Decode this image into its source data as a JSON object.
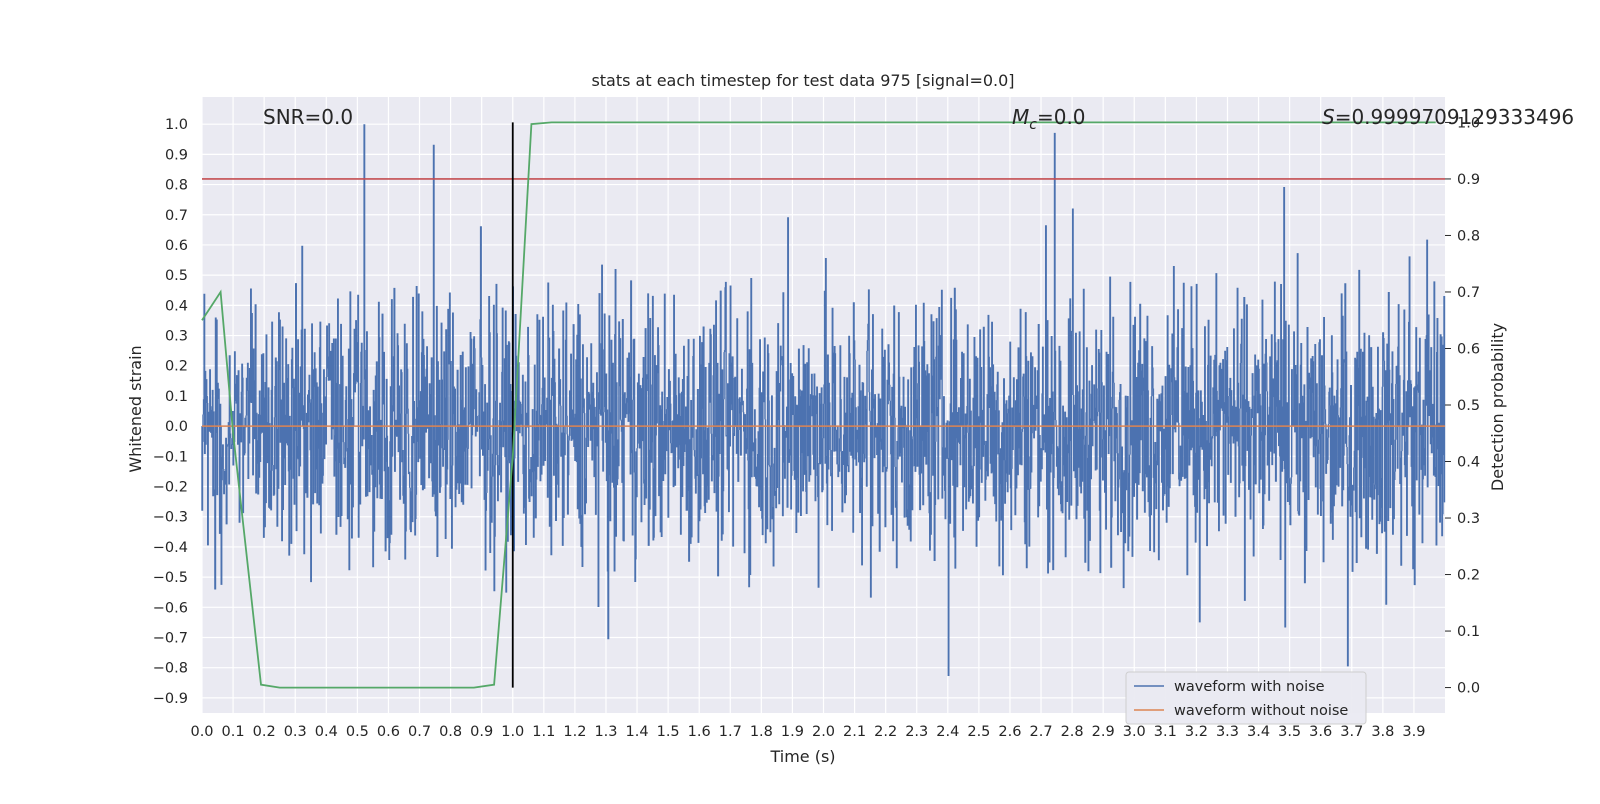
{
  "chart_data": {
    "type": "line",
    "title": "stats at each timestep for test data 975 [signal=0.0]",
    "xlabel": "Time (s)",
    "ylabel": "Whitened strain",
    "y2label": "Detection probability",
    "xlim": [
      0.0,
      4.0
    ],
    "ylim": [
      -0.95,
      1.09
    ],
    "y2lim": [
      -0.045,
      1.045
    ],
    "x_ticks": [
      0.0,
      0.1,
      0.2,
      0.3,
      0.4,
      0.5,
      0.6,
      0.7,
      0.8,
      0.9,
      1.0,
      1.1,
      1.2,
      1.3,
      1.4,
      1.5,
      1.6,
      1.7,
      1.8,
      1.9,
      2.0,
      2.1,
      2.2,
      2.3,
      2.4,
      2.5,
      2.6,
      2.7,
      2.8,
      2.9,
      3.0,
      3.1,
      3.2,
      3.3,
      3.4,
      3.5,
      3.6,
      3.7,
      3.8,
      3.9
    ],
    "x_tick_labels": [
      "0.0",
      "0.1",
      "0.2",
      "0.3",
      "0.4",
      "0.5",
      "0.6",
      "0.7",
      "0.8",
      "0.9",
      "1.0",
      "1.1",
      "1.2",
      "1.3",
      "1.4",
      "1.5",
      "1.6",
      "1.7",
      "1.8",
      "1.9",
      "2.0",
      "2.1",
      "2.2",
      "2.3",
      "2.4",
      "2.5",
      "2.6",
      "2.7",
      "2.8",
      "2.9",
      "3.0",
      "3.1",
      "3.2",
      "3.3",
      "3.4",
      "3.5",
      "3.6",
      "3.7",
      "3.8",
      "3.9"
    ],
    "y_ticks": [
      1.0,
      0.9,
      0.8,
      0.7,
      0.6,
      0.5,
      0.4,
      0.3,
      0.2,
      0.1,
      0.0,
      -0.1,
      -0.2,
      -0.3,
      -0.4,
      -0.5,
      -0.6,
      -0.7,
      -0.8,
      -0.9
    ],
    "y_tick_labels": [
      "1.0",
      "0.9",
      "0.8",
      "0.7",
      "0.6",
      "0.5",
      "0.4",
      "0.3",
      "0.2",
      "0.1",
      "0.0",
      "−0.1",
      "−0.2",
      "−0.3",
      "−0.4",
      "−0.5",
      "−0.6",
      "−0.7",
      "−0.8",
      "−0.9"
    ],
    "y2_ticks": [
      1.0,
      0.9,
      0.8,
      0.7,
      0.6,
      0.5,
      0.4,
      0.3,
      0.2,
      0.1,
      0.0
    ],
    "y2_tick_labels": [
      "1.0",
      "0.9",
      "0.8",
      "0.7",
      "0.6",
      "0.5",
      "0.4",
      "0.3",
      "0.2",
      "0.1",
      "0.0"
    ],
    "annotations": {
      "snr": "SNR=0.0",
      "mc_symbol": "M",
      "mc_subscript": "c",
      "mc_value": "=0.0",
      "s_symbol": "S",
      "s_value": "=0.9999709129333496"
    },
    "legend": {
      "location": "lower-right",
      "entries": [
        {
          "label": "waveform with noise",
          "color": "#4c72b0"
        },
        {
          "label": "waveform without noise",
          "color": "#dd8452"
        }
      ]
    },
    "series": [
      {
        "name": "waveform with noise",
        "axis": "left",
        "color": "#4c72b0",
        "kind": "noise",
        "sample_rate_hz": 2048,
        "duration_s": 4.0,
        "typical_range": [
          -0.85,
          1.0
        ]
      },
      {
        "name": "waveform without noise",
        "axis": "left",
        "color": "#dd8452",
        "x": [
          0.0,
          4.0
        ],
        "y": [
          0.0,
          0.0
        ]
      },
      {
        "name": "detection probability",
        "axis": "right",
        "color": "#55a868",
        "x": [
          0.0,
          0.06,
          0.1,
          0.19,
          0.25,
          0.31,
          0.5,
          0.75,
          0.875,
          0.94,
          1.0,
          1.06,
          1.125,
          1.5,
          2.0,
          3.0,
          3.97
        ],
        "y": [
          0.65,
          0.7,
          0.45,
          0.005,
          0.0,
          0.0,
          0.0,
          0.0,
          0.0,
          0.005,
          0.41,
          0.997,
          1.0,
          1.0,
          1.0,
          1.0,
          1.0
        ]
      }
    ],
    "threshold_line": {
      "axis": "right",
      "value": 0.9,
      "color": "#c44e52"
    },
    "marker_line": {
      "x": 1.0,
      "y_from": 0.0,
      "y_to": 1.0,
      "axis": "right",
      "color": "#000000"
    },
    "grid": true,
    "background_color": "#eaeaf2"
  }
}
